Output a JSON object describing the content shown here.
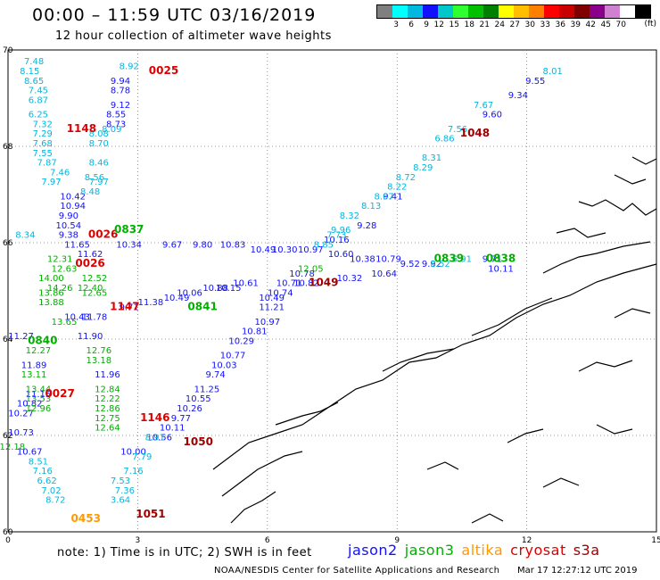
{
  "title": "00:00 – 11:59 UTC 03/16/2019",
  "subtitle": "12 hour collection of altimeter wave heights",
  "legend": {
    "colors": [
      "#7f7f7f",
      "#00ffff",
      "#00b8e0",
      "#1010ff",
      "#00c8c8",
      "#30ff30",
      "#00c000",
      "#008000",
      "#ffff00",
      "#ffbf00",
      "#ff7f00",
      "#ff0000",
      "#c80000",
      "#800000",
      "#8b008b",
      "#d080d0",
      "#ffffff",
      "#000000"
    ],
    "labels": [
      "3",
      "6",
      "9",
      "12",
      "15",
      "18",
      "21",
      "24",
      "27",
      "30",
      "33",
      "36",
      "39",
      "42",
      "45",
      "70"
    ],
    "unit": "(ft)"
  },
  "axes": {
    "x_ticks": [
      "0",
      "3",
      "6",
      "9",
      "12",
      "15"
    ],
    "y_ticks": [
      "60",
      "62",
      "64",
      "66",
      "68",
      "70"
    ]
  },
  "footer": {
    "note": "note:  1) Time is in UTC; 2) SWH is in feet",
    "satellites": [
      {
        "name": "jason2",
        "color": "#1010ff"
      },
      {
        "name": "jason3",
        "color": "#00b000"
      },
      {
        "name": "altika",
        "color": "#ff9900"
      },
      {
        "name": "cryosat",
        "color": "#dd0000"
      },
      {
        "name": "s3a",
        "color": "#a00000"
      }
    ],
    "credit": "NOAA/NESDIS Center for Satellite Applications and Research",
    "timestamp": "Mar 17 12:27:12 UTC 2019"
  },
  "chart_data": {
    "type": "scatter",
    "xlim": [
      0,
      15
    ],
    "ylim": [
      60,
      70
    ],
    "grid": true,
    "time_labels": [
      {
        "text": "0025",
        "x": 3.6,
        "y": 69.5,
        "color": "#dd0000"
      },
      {
        "text": "1148",
        "x": 1.7,
        "y": 68.3,
        "color": "#dd0000"
      },
      {
        "text": "0026",
        "x": 2.2,
        "y": 66.1,
        "color": "#dd0000"
      },
      {
        "text": "0026",
        "x": 1.9,
        "y": 65.5,
        "color": "#dd0000"
      },
      {
        "text": "1147",
        "x": 2.7,
        "y": 64.6,
        "color": "#dd0000"
      },
      {
        "text": "0027",
        "x": 1.2,
        "y": 62.8,
        "color": "#dd0000"
      },
      {
        "text": "1146",
        "x": 3.4,
        "y": 62.3,
        "color": "#dd0000"
      },
      {
        "text": "1050",
        "x": 4.4,
        "y": 61.8,
        "color": "#a00000"
      },
      {
        "text": "1051",
        "x": 3.3,
        "y": 60.3,
        "color": "#a00000"
      },
      {
        "text": "0453",
        "x": 1.8,
        "y": 60.2,
        "color": "#ff9900"
      },
      {
        "text": "1048",
        "x": 10.8,
        "y": 68.2,
        "color": "#a00000"
      },
      {
        "text": "1049",
        "x": 7.3,
        "y": 65.1,
        "color": "#a00000"
      },
      {
        "text": "0840",
        "x": 0.8,
        "y": 63.9,
        "color": "#00b000"
      },
      {
        "text": "0841",
        "x": 4.5,
        "y": 64.6,
        "color": "#00b000"
      },
      {
        "text": "0837",
        "x": 2.8,
        "y": 66.2,
        "color": "#00b000"
      },
      {
        "text": "0839",
        "x": 10.2,
        "y": 65.6,
        "color": "#00b000"
      },
      {
        "text": "0838",
        "x": 11.4,
        "y": 65.6,
        "color": "#00b000"
      }
    ],
    "series": [
      {
        "satellite": "jason2",
        "color": "#1010ff",
        "points": [
          {
            "x": 2.6,
            "y": 69.3,
            "v": "9.94"
          },
          {
            "x": 2.6,
            "y": 69.1,
            "v": "8.78"
          },
          {
            "x": 2.6,
            "y": 68.8,
            "v": "9.12"
          },
          {
            "x": 2.5,
            "y": 68.6,
            "v": "8.55"
          },
          {
            "x": 2.5,
            "y": 68.4,
            "v": "8.73"
          },
          {
            "x": 1.5,
            "y": 66.9,
            "v": "10.42"
          },
          {
            "x": 1.5,
            "y": 66.7,
            "v": "10.94"
          },
          {
            "x": 1.4,
            "y": 66.5,
            "v": "9.90"
          },
          {
            "x": 1.4,
            "y": 66.3,
            "v": "10.54"
          },
          {
            "x": 1.4,
            "y": 66.1,
            "v": "9.38"
          },
          {
            "x": 2.8,
            "y": 65.9,
            "v": "10.34"
          },
          {
            "x": 3.8,
            "y": 65.9,
            "v": "9.67"
          },
          {
            "x": 4.5,
            "y": 65.9,
            "v": "9.80"
          },
          {
            "x": 5.2,
            "y": 65.9,
            "v": "10.83"
          },
          {
            "x": 5.9,
            "y": 65.8,
            "v": "10.49"
          },
          {
            "x": 6.4,
            "y": 65.8,
            "v": "10.30"
          },
          {
            "x": 7.0,
            "y": 65.8,
            "v": "10.97"
          },
          {
            "x": 7.7,
            "y": 65.7,
            "v": "10.60"
          },
          {
            "x": 8.2,
            "y": 65.6,
            "v": "10.38"
          },
          {
            "x": 7.6,
            "y": 66.0,
            "v": "10.16"
          },
          {
            "x": 8.8,
            "y": 65.6,
            "v": "10.79"
          },
          {
            "x": 9.3,
            "y": 65.5,
            "v": "9.52"
          },
          {
            "x": 9.8,
            "y": 65.5,
            "v": "9.92"
          },
          {
            "x": 11.2,
            "y": 65.6,
            "v": "9.71"
          },
          {
            "x": 11.4,
            "y": 65.4,
            "v": "10.11"
          },
          {
            "x": 8.7,
            "y": 65.3,
            "v": "10.64"
          },
          {
            "x": 7.9,
            "y": 65.2,
            "v": "10.32"
          },
          {
            "x": 1.9,
            "y": 65.7,
            "v": "11.62"
          },
          {
            "x": 1.6,
            "y": 65.9,
            "v": "11.65"
          },
          {
            "x": 6.8,
            "y": 65.3,
            "v": "10.78"
          },
          {
            "x": 6.9,
            "y": 65.1,
            "v": "10.82"
          },
          {
            "x": 6.5,
            "y": 65.1,
            "v": "10.71"
          },
          {
            "x": 6.3,
            "y": 64.9,
            "v": "10.74"
          },
          {
            "x": 6.1,
            "y": 64.8,
            "v": "10.49"
          },
          {
            "x": 6.1,
            "y": 64.6,
            "v": "11.21"
          },
          {
            "x": 6.0,
            "y": 64.3,
            "v": "10.97"
          },
          {
            "x": 5.7,
            "y": 64.1,
            "v": "10.81"
          },
          {
            "x": 5.4,
            "y": 63.9,
            "v": "10.29"
          },
          {
            "x": 5.2,
            "y": 63.6,
            "v": "10.77"
          },
          {
            "x": 5.0,
            "y": 63.4,
            "v": "10.03"
          },
          {
            "x": 4.8,
            "y": 63.2,
            "v": "9.74"
          },
          {
            "x": 4.6,
            "y": 62.9,
            "v": "11.25"
          },
          {
            "x": 4.4,
            "y": 62.7,
            "v": "10.55"
          },
          {
            "x": 4.2,
            "y": 62.5,
            "v": "10.26"
          },
          {
            "x": 4.0,
            "y": 62.3,
            "v": "9.77"
          },
          {
            "x": 3.8,
            "y": 62.1,
            "v": "10.11"
          },
          {
            "x": 3.5,
            "y": 61.9,
            "v": "10.56"
          },
          {
            "x": 5.5,
            "y": 65.1,
            "v": "10.61"
          },
          {
            "x": 4.8,
            "y": 65.0,
            "v": "10.88"
          },
          {
            "x": 5.1,
            "y": 65.0,
            "v": "10.15"
          },
          {
            "x": 4.2,
            "y": 64.9,
            "v": "10.06"
          },
          {
            "x": 3.9,
            "y": 64.8,
            "v": "10.49"
          },
          {
            "x": 3.3,
            "y": 64.7,
            "v": "11.38"
          },
          {
            "x": 2.8,
            "y": 64.6,
            "v": "9.71"
          },
          {
            "x": 2.0,
            "y": 64.4,
            "v": "11.78"
          },
          {
            "x": 1.6,
            "y": 64.4,
            "v": "10.43"
          },
          {
            "x": 0.3,
            "y": 64.0,
            "v": "11.27"
          },
          {
            "x": 1.9,
            "y": 64.0,
            "v": "11.90"
          },
          {
            "x": 0.6,
            "y": 63.4,
            "v": "11.89"
          },
          {
            "x": 2.3,
            "y": 63.2,
            "v": "11.96"
          },
          {
            "x": 0.7,
            "y": 62.8,
            "v": "11.15"
          },
          {
            "x": 0.5,
            "y": 62.6,
            "v": "10.82"
          },
          {
            "x": 0.3,
            "y": 62.4,
            "v": "10.27"
          },
          {
            "x": 0.3,
            "y": 62.0,
            "v": "10.73"
          },
          {
            "x": 0.5,
            "y": 61.6,
            "v": "10.67"
          },
          {
            "x": 2.9,
            "y": 61.6,
            "v": "10.00"
          },
          {
            "x": 12.2,
            "y": 69.3,
            "v": "9.55"
          },
          {
            "x": 11.8,
            "y": 69.0,
            "v": "9.34"
          },
          {
            "x": 11.2,
            "y": 68.6,
            "v": "9.60"
          },
          {
            "x": 8.9,
            "y": 66.9,
            "v": "9.41"
          },
          {
            "x": 8.3,
            "y": 66.3,
            "v": "9.28"
          }
        ]
      },
      {
        "satellite": "jason3",
        "color": "#00b000",
        "points": [
          {
            "x": 1.2,
            "y": 65.6,
            "v": "12.31"
          },
          {
            "x": 1.3,
            "y": 65.4,
            "v": "12.63"
          },
          {
            "x": 1.0,
            "y": 65.2,
            "v": "14.00"
          },
          {
            "x": 1.0,
            "y": 64.9,
            "v": "13.86"
          },
          {
            "x": 1.0,
            "y": 64.7,
            "v": "13.88"
          },
          {
            "x": 1.2,
            "y": 65.0,
            "v": "14.26"
          },
          {
            "x": 2.0,
            "y": 65.2,
            "v": "12.52"
          },
          {
            "x": 2.0,
            "y": 64.9,
            "v": "12.65"
          },
          {
            "x": 1.9,
            "y": 65.0,
            "v": "12.40"
          },
          {
            "x": 1.3,
            "y": 64.3,
            "v": "13.65"
          },
          {
            "x": 2.1,
            "y": 63.7,
            "v": "12.76"
          },
          {
            "x": 2.1,
            "y": 63.5,
            "v": "13.18"
          },
          {
            "x": 0.7,
            "y": 63.7,
            "v": "12.27"
          },
          {
            "x": 0.6,
            "y": 63.2,
            "v": "13.11"
          },
          {
            "x": 0.7,
            "y": 62.9,
            "v": "13.44"
          },
          {
            "x": 0.7,
            "y": 62.7,
            "v": "13.53"
          },
          {
            "x": 0.7,
            "y": 62.5,
            "v": "12.96"
          },
          {
            "x": 2.3,
            "y": 62.9,
            "v": "12.84"
          },
          {
            "x": 2.3,
            "y": 62.7,
            "v": "12.22"
          },
          {
            "x": 2.3,
            "y": 62.5,
            "v": "12.86"
          },
          {
            "x": 2.3,
            "y": 62.3,
            "v": "12.75"
          },
          {
            "x": 2.3,
            "y": 62.1,
            "v": "12.64"
          },
          {
            "x": 0.1,
            "y": 61.7,
            "v": "12.18"
          },
          {
            "x": 7.0,
            "y": 65.4,
            "v": "12.05"
          }
        ]
      },
      {
        "satellite": "altika",
        "color": "#00b8e0",
        "points": [
          {
            "x": 2.8,
            "y": 69.6,
            "v": "8.92"
          },
          {
            "x": 0.6,
            "y": 69.7,
            "v": "7.48"
          },
          {
            "x": 0.5,
            "y": 69.5,
            "v": "8.15"
          },
          {
            "x": 0.6,
            "y": 69.3,
            "v": "8.65"
          },
          {
            "x": 0.7,
            "y": 69.1,
            "v": "7.45"
          },
          {
            "x": 0.7,
            "y": 68.9,
            "v": "6.87"
          },
          {
            "x": 0.7,
            "y": 68.6,
            "v": "6.25"
          },
          {
            "x": 0.8,
            "y": 68.4,
            "v": "7.32"
          },
          {
            "x": 0.8,
            "y": 68.2,
            "v": "7.29"
          },
          {
            "x": 0.8,
            "y": 68.0,
            "v": "7.68"
          },
          {
            "x": 0.8,
            "y": 67.8,
            "v": "7.55"
          },
          {
            "x": 0.9,
            "y": 67.6,
            "v": "7.87"
          },
          {
            "x": 1.2,
            "y": 67.4,
            "v": "7.46"
          },
          {
            "x": 1.0,
            "y": 67.2,
            "v": "7.97"
          },
          {
            "x": 2.1,
            "y": 68.2,
            "v": "8.08"
          },
          {
            "x": 2.1,
            "y": 68.0,
            "v": "8.70"
          },
          {
            "x": 2.1,
            "y": 67.6,
            "v": "8.46"
          },
          {
            "x": 2.0,
            "y": 67.3,
            "v": "8.56"
          },
          {
            "x": 2.1,
            "y": 67.2,
            "v": "7.97"
          },
          {
            "x": 1.9,
            "y": 67.0,
            "v": "8.48"
          },
          {
            "x": 2.4,
            "y": 68.3,
            "v": "8.09"
          },
          {
            "x": 0.4,
            "y": 66.1,
            "v": "8.34"
          },
          {
            "x": 12.6,
            "y": 69.5,
            "v": "8.01"
          },
          {
            "x": 11.0,
            "y": 68.8,
            "v": "7.67"
          },
          {
            "x": 10.4,
            "y": 68.3,
            "v": "7.56"
          },
          {
            "x": 10.1,
            "y": 68.1,
            "v": "6.86"
          },
          {
            "x": 9.8,
            "y": 67.7,
            "v": "8.31"
          },
          {
            "x": 9.6,
            "y": 67.5,
            "v": "8.29"
          },
          {
            "x": 9.2,
            "y": 67.3,
            "v": "8.72"
          },
          {
            "x": 9.0,
            "y": 67.1,
            "v": "8.22"
          },
          {
            "x": 8.7,
            "y": 66.9,
            "v": "8.67"
          },
          {
            "x": 8.4,
            "y": 66.7,
            "v": "8.13"
          },
          {
            "x": 7.6,
            "y": 66.1,
            "v": "7.73"
          },
          {
            "x": 7.3,
            "y": 65.9,
            "v": "8.85"
          },
          {
            "x": 7.9,
            "y": 66.5,
            "v": "8.32"
          },
          {
            "x": 7.7,
            "y": 66.2,
            "v": "9.96"
          },
          {
            "x": 10.5,
            "y": 65.6,
            "v": "6.91"
          },
          {
            "x": 10.0,
            "y": 65.5,
            "v": "8.52"
          },
          {
            "x": 3.4,
            "y": 61.9,
            "v": "8.91"
          },
          {
            "x": 3.1,
            "y": 61.5,
            "v": "7.79"
          },
          {
            "x": 2.9,
            "y": 61.2,
            "v": "7.16"
          },
          {
            "x": 2.6,
            "y": 61.0,
            "v": "7.53"
          },
          {
            "x": 2.7,
            "y": 60.8,
            "v": "7.36"
          },
          {
            "x": 2.6,
            "y": 60.6,
            "v": "3.64"
          },
          {
            "x": 0.7,
            "y": 61.4,
            "v": "8.51"
          },
          {
            "x": 0.8,
            "y": 61.2,
            "v": "7.16"
          },
          {
            "x": 0.9,
            "y": 61.0,
            "v": "6.62"
          },
          {
            "x": 1.0,
            "y": 60.8,
            "v": "7.02"
          },
          {
            "x": 1.1,
            "y": 60.6,
            "v": "8.72"
          }
        ]
      }
    ]
  }
}
